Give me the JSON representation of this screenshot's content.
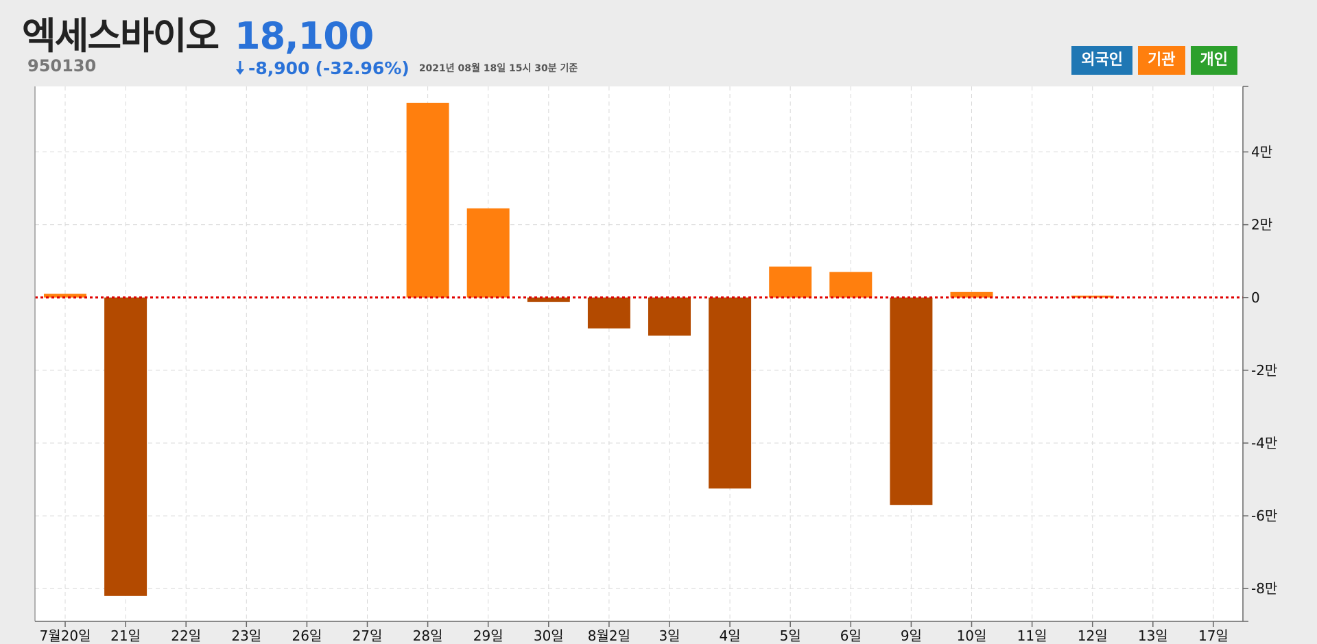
{
  "header": {
    "stock_name": "엑세스바이오",
    "stock_code": "950130",
    "price": "18,100",
    "change": "-8,900",
    "change_pct": "(-32.96%)",
    "as_of": "2021년 08월 18일 15시 30분 기준",
    "change_color": "#2a72d8"
  },
  "legend": [
    {
      "label": "외국인",
      "color": "#1f77b4"
    },
    {
      "label": "기관",
      "color": "#ff7f0e"
    },
    {
      "label": "개인",
      "color": "#2ca02c"
    }
  ],
  "chart_data": {
    "type": "bar",
    "series_name": "기관",
    "categories": [
      "7월20일",
      "21일",
      "22일",
      "23일",
      "26일",
      "27일",
      "28일",
      "29일",
      "30일",
      "8월2일",
      "3일",
      "4일",
      "5일",
      "6일",
      "9일",
      "10일",
      "11일",
      "12일",
      "13일",
      "17일"
    ],
    "values": [
      1000,
      -82000,
      0,
      0,
      0,
      0,
      53500,
      24500,
      -1200,
      -8500,
      -10500,
      -52500,
      8500,
      7000,
      -57000,
      1500,
      0,
      500,
      0,
      0
    ],
    "positive_color": "#ff7f0e",
    "negative_color": "#b34a00",
    "zero_line_color": "#e00000",
    "ylim": [
      -89000,
      58000
    ],
    "yticks": [
      40000,
      20000,
      0,
      -20000,
      -40000,
      -60000,
      -80000
    ],
    "ytick_labels": [
      "4만",
      "2만",
      "0",
      "-2만",
      "-4만",
      "-6만",
      "-8만"
    ],
    "y_axis_position": "right",
    "grid": true
  }
}
